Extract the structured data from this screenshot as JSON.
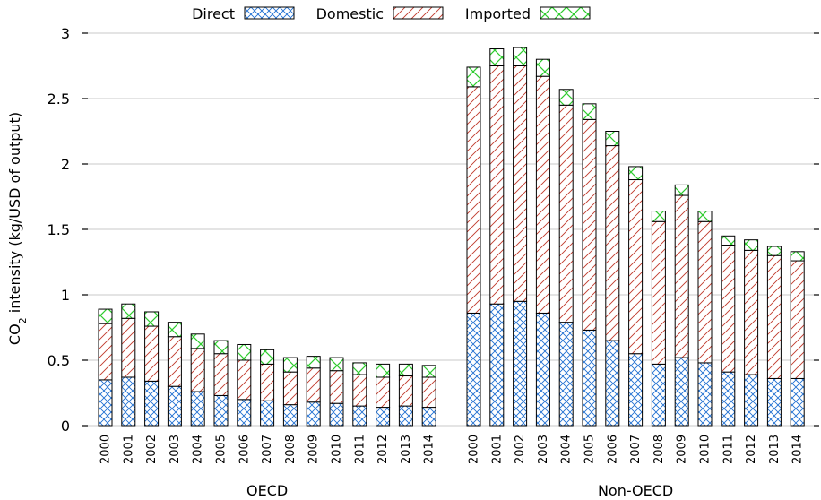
{
  "chart_data": {
    "type": "bar",
    "stacked": true,
    "ylabel_main": "CO",
    "ylabel_sub": "2",
    "ylabel_rest": " intensity (kg/USD of output)",
    "ylim": [
      0,
      3
    ],
    "yticks": [
      "0",
      "0.5",
      "1",
      "1.5",
      "2",
      "2.5",
      "3"
    ],
    "grid": true,
    "legend_position": "top-center",
    "series_names": [
      "Direct",
      "Domestic",
      "Imported"
    ],
    "series_colors": {
      "Direct": "#1f6fd1",
      "Domestic": "#c0392b",
      "Imported": "#2ecc2e"
    },
    "groups": [
      {
        "name": "OECD",
        "years": [
          "2000",
          "2001",
          "2002",
          "2003",
          "2004",
          "2005",
          "2006",
          "2007",
          "2008",
          "2009",
          "2010",
          "2011",
          "2012",
          "2013",
          "2014"
        ],
        "direct": [
          0.35,
          0.37,
          0.34,
          0.3,
          0.26,
          0.23,
          0.2,
          0.19,
          0.16,
          0.18,
          0.17,
          0.15,
          0.14,
          0.15,
          0.14
        ],
        "domestic": [
          0.43,
          0.45,
          0.42,
          0.38,
          0.33,
          0.32,
          0.3,
          0.28,
          0.25,
          0.26,
          0.25,
          0.24,
          0.23,
          0.23,
          0.23
        ],
        "imported": [
          0.11,
          0.11,
          0.11,
          0.11,
          0.11,
          0.1,
          0.12,
          0.11,
          0.11,
          0.09,
          0.1,
          0.09,
          0.1,
          0.09,
          0.09
        ]
      },
      {
        "name": "Non-OECD",
        "years": [
          "2000",
          "2001",
          "2002",
          "2003",
          "2004",
          "2005",
          "2006",
          "2007",
          "2008",
          "2009",
          "2010",
          "2011",
          "2012",
          "2013",
          "2014"
        ],
        "direct": [
          0.86,
          0.93,
          0.95,
          0.86,
          0.79,
          0.73,
          0.65,
          0.55,
          0.47,
          0.52,
          0.48,
          0.41,
          0.39,
          0.36,
          0.36
        ],
        "domestic": [
          1.73,
          1.82,
          1.8,
          1.81,
          1.66,
          1.61,
          1.49,
          1.33,
          1.09,
          1.24,
          1.08,
          0.97,
          0.95,
          0.94,
          0.9
        ],
        "imported": [
          0.15,
          0.13,
          0.14,
          0.13,
          0.12,
          0.12,
          0.11,
          0.1,
          0.08,
          0.08,
          0.08,
          0.07,
          0.08,
          0.07,
          0.07
        ]
      }
    ]
  }
}
